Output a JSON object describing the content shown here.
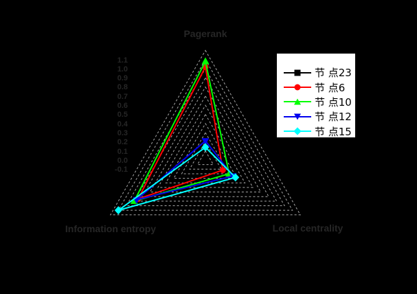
{
  "chart_data": {
    "type": "radar",
    "title": "",
    "axes": [
      "Pagerank",
      "Local centrality",
      "Information entropy"
    ],
    "radial_tick_labels": [
      "1.1",
      "1.0",
      "0.9",
      "0.8",
      "0.7",
      "0.6",
      "0.5",
      "0.4",
      "0.3",
      "0.2",
      "0.1",
      "0.0",
      "-0.1"
    ],
    "axis_range": [
      0.0,
      1.2
    ],
    "grid_step": 0.1,
    "grid": true,
    "grid_style": "dashed",
    "legend_position": "upper right",
    "series": [
      {
        "name": "节 点23",
        "color": "#000000",
        "marker": "square",
        "values": null,
        "note": "legend entry visible; line/markers are black and not visible against the black plot background"
      },
      {
        "name": "节 点6",
        "color": "#ff0000",
        "marker": "circle",
        "values": [
          1.02,
          0.22,
          0.85
        ]
      },
      {
        "name": "节 点10",
        "color": "#00ff00",
        "marker": "triangle-up",
        "values": [
          1.08,
          0.3,
          0.9
        ]
      },
      {
        "name": "节 点12",
        "color": "#0000ee",
        "marker": "triangle-down",
        "values": [
          0.21,
          0.35,
          0.87
        ]
      },
      {
        "name": "节 点15",
        "color": "#00ffff",
        "marker": "diamond",
        "values": [
          0.14,
          0.38,
          1.1
        ]
      }
    ],
    "colors": {
      "background": "#000000",
      "gridline": "#a8a8a8",
      "axis_text": "#262626",
      "legend_background": "#ffffff",
      "legend_text": "#000000"
    }
  }
}
